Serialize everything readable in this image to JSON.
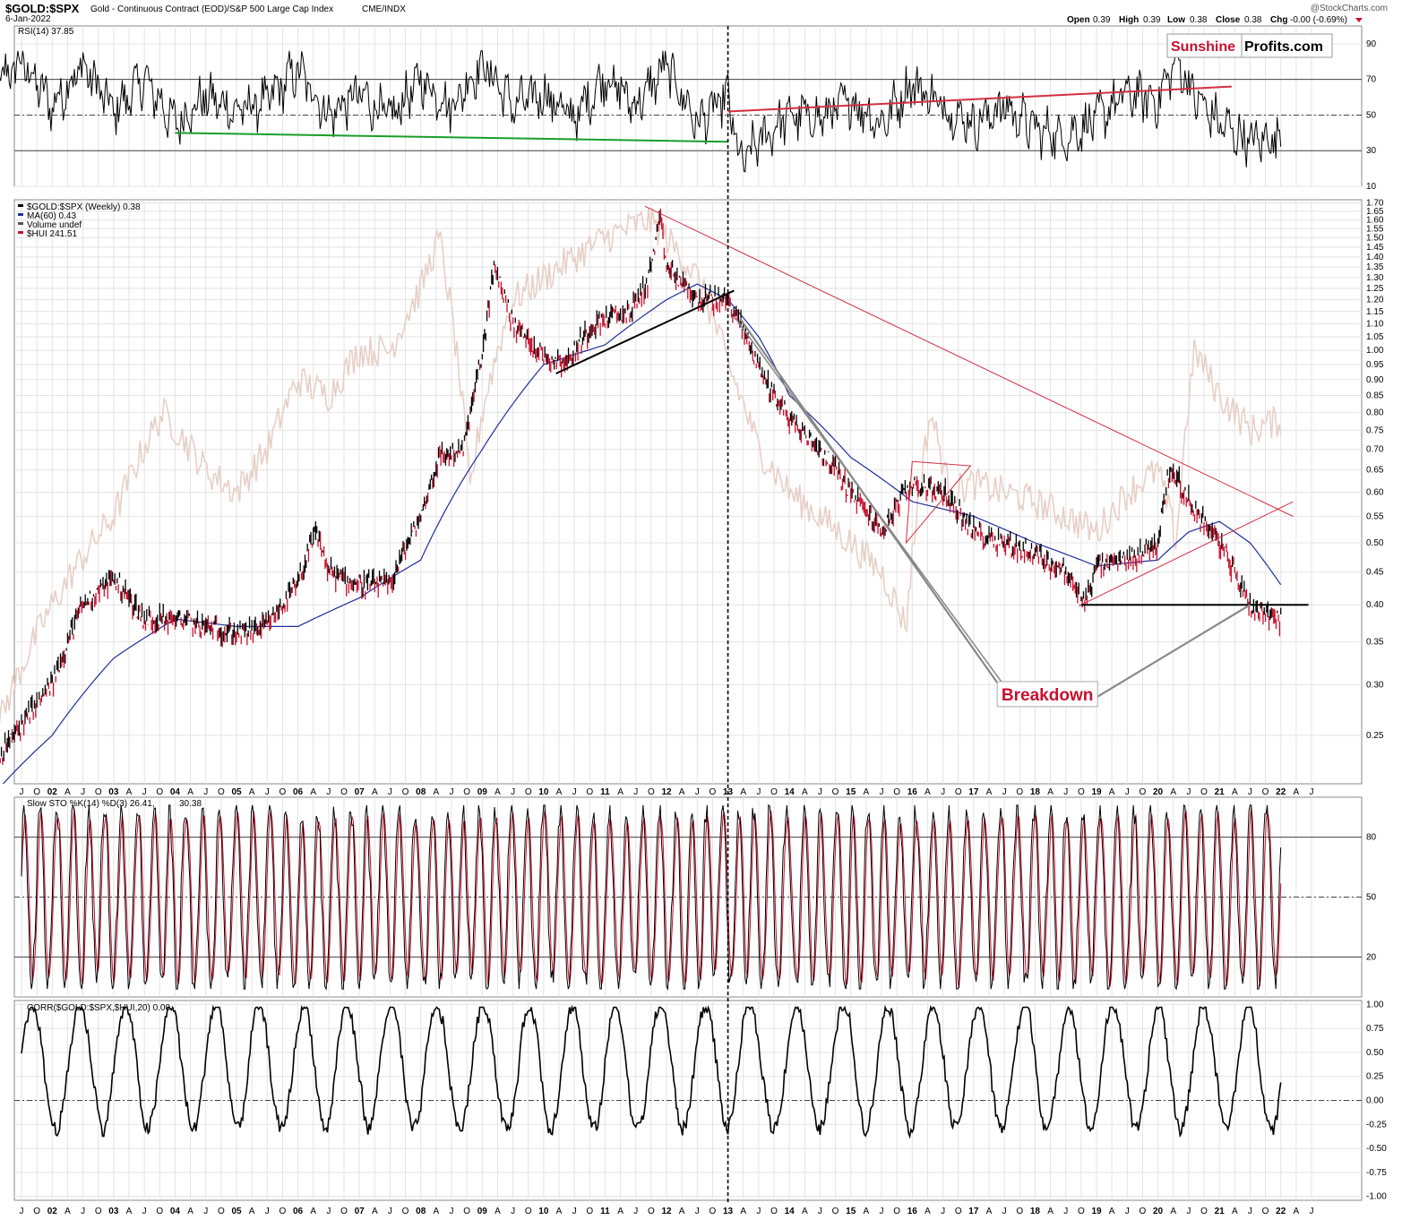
{
  "header": {
    "symbol": "$GOLD:$SPX",
    "description": "Gold - Continuous Contract (EOD)/S&P 500 Large Cap Index",
    "exchange": "CME/INDX",
    "date": "6-Jan-2022",
    "copyright": "@StockCharts.com",
    "quote": {
      "open_label": "Open",
      "open": "0.39",
      "high_label": "High",
      "high": "0.39",
      "low_label": "Low",
      "low": "0.38",
      "close_label": "Close",
      "close": "0.38",
      "chg_label": "Chg",
      "chg": "-0.00 (-0.69%)"
    }
  },
  "logo": {
    "part1": "Sunshine",
    "part2": "Profits.com"
  },
  "colors": {
    "price_up": "#000000",
    "price_down": "#c8102e",
    "ma": "#1f2f9a",
    "hui": "#e7cfc6",
    "support_green": "#1a9e2a",
    "resistance_red": "#d22e40",
    "stoch_d": "#c8102e",
    "logo_red": "#c8102e"
  },
  "chart_data": [
    {
      "type": "line",
      "panel": "rsi",
      "legend": "RSI(14) 37.85",
      "y_ticks": [
        10,
        30,
        50,
        70,
        90
      ],
      "ylim": [
        10,
        100
      ],
      "reference_lines": [
        30,
        50,
        70
      ],
      "series": [
        {
          "name": "RSI(14)",
          "x": [
            2001.0,
            2001.5,
            2002.0,
            2002.5,
            2003.0,
            2003.5,
            2004.0,
            2004.5,
            2005.0,
            2005.5,
            2006.0,
            2006.5,
            2007.0,
            2007.5,
            2008.0,
            2008.5,
            2009.0,
            2009.5,
            2010.0,
            2010.5,
            2011.0,
            2011.5,
            2012.0,
            2012.5,
            2013.0,
            2013.2,
            2013.5,
            2014.0,
            2014.5,
            2015.0,
            2015.5,
            2016.0,
            2016.5,
            2017.0,
            2017.5,
            2018.0,
            2018.5,
            2019.0,
            2019.5,
            2020.0,
            2020.3,
            2020.6,
            2021.0,
            2021.5,
            2022.0
          ],
          "values": [
            65,
            80,
            55,
            78,
            52,
            70,
            45,
            60,
            52,
            58,
            75,
            50,
            62,
            48,
            70,
            55,
            80,
            55,
            62,
            48,
            72,
            55,
            78,
            45,
            60,
            22,
            35,
            50,
            48,
            58,
            45,
            68,
            55,
            45,
            55,
            42,
            38,
            48,
            62,
            58,
            82,
            60,
            45,
            35,
            38
          ]
        }
      ],
      "trendlines": [
        {
          "color": "green",
          "from": [
            2004.0,
            40
          ],
          "to": [
            2013.0,
            35
          ]
        },
        {
          "color": "red",
          "from": [
            2013.0,
            52
          ],
          "to": [
            2021.2,
            66
          ]
        }
      ]
    },
    {
      "type": "line",
      "panel": "price",
      "scale": "log",
      "legend": [
        {
          "label": "$GOLD:$SPX (Weekly) 0.38"
        },
        {
          "label": "MA(60) 0.43"
        },
        {
          "label": "Volume undef"
        },
        {
          "label": "$HUI 241.51"
        }
      ],
      "y_ticks": [
        0.25,
        0.3,
        0.35,
        0.4,
        0.45,
        0.5,
        0.55,
        0.6,
        0.65,
        0.7,
        0.75,
        0.8,
        0.85,
        0.9,
        0.95,
        1.0,
        1.05,
        1.1,
        1.15,
        1.2,
        1.25,
        1.3,
        1.35,
        1.4,
        1.45,
        1.5,
        1.55,
        1.6,
        1.65,
        1.7
      ],
      "y_tick_labels": [
        "0.25",
        "0.30",
        "0.35",
        "0.40",
        "0.45",
        "0.50",
        "0.55",
        "0.60",
        "0.65",
        "0.70",
        "0.75",
        "0.80",
        "0.85",
        "0.90",
        "0.95",
        "1.00",
        "1.05",
        "1.10",
        "1.15",
        "1.20",
        "1.25",
        "1.30",
        "1.35",
        "1.40",
        "1.45",
        "1.50",
        "1.55",
        "1.60",
        "1.65",
        "1.70"
      ],
      "ylim": [
        0.21,
        1.72
      ],
      "series": [
        {
          "name": "$GOLD:$SPX (Weekly)",
          "x": [
            2001.0,
            2001.5,
            2002.0,
            2002.5,
            2003.0,
            2003.5,
            2004.0,
            2004.5,
            2005.0,
            2005.5,
            2006.0,
            2006.3,
            2006.5,
            2007.0,
            2007.5,
            2008.0,
            2008.3,
            2008.7,
            2009.0,
            2009.2,
            2009.5,
            2010.0,
            2010.4,
            2010.8,
            2011.0,
            2011.4,
            2011.7,
            2011.9,
            2012.0,
            2012.5,
            2013.0,
            2013.3,
            2013.6,
            2014.0,
            2014.5,
            2015.0,
            2015.5,
            2016.0,
            2016.5,
            2017.0,
            2017.5,
            2018.0,
            2018.5,
            2018.8,
            2019.0,
            2019.5,
            2020.0,
            2020.2,
            2020.5,
            2021.0,
            2021.5,
            2022.0
          ],
          "values": [
            0.22,
            0.26,
            0.3,
            0.4,
            0.44,
            0.38,
            0.38,
            0.37,
            0.36,
            0.37,
            0.43,
            0.52,
            0.45,
            0.43,
            0.43,
            0.55,
            0.68,
            0.7,
            0.98,
            1.35,
            1.1,
            0.98,
            0.96,
            1.1,
            1.12,
            1.15,
            1.28,
            1.6,
            1.35,
            1.2,
            1.2,
            1.05,
            0.9,
            0.78,
            0.7,
            0.6,
            0.52,
            0.62,
            0.6,
            0.52,
            0.5,
            0.48,
            0.45,
            0.4,
            0.46,
            0.47,
            0.5,
            0.66,
            0.58,
            0.5,
            0.4,
            0.38
          ]
        },
        {
          "name": "MA(60)",
          "x": [
            2001.2,
            2002.0,
            2003.0,
            2004.0,
            2005.0,
            2006.0,
            2007.0,
            2008.0,
            2009.0,
            2010.0,
            2011.0,
            2012.0,
            2012.5,
            2013.0,
            2013.5,
            2014.0,
            2015.0,
            2016.0,
            2017.0,
            2018.0,
            2019.0,
            2020.0,
            2020.5,
            2021.0,
            2021.5,
            2022.0
          ],
          "values": [
            0.21,
            0.25,
            0.33,
            0.38,
            0.37,
            0.37,
            0.41,
            0.47,
            0.7,
            0.95,
            1.02,
            1.2,
            1.27,
            1.2,
            1.05,
            0.85,
            0.68,
            0.58,
            0.55,
            0.5,
            0.46,
            0.47,
            0.52,
            0.54,
            0.5,
            0.43
          ]
        },
        {
          "name": "$HUI",
          "x": [
            2001.0,
            2002.0,
            2003.0,
            2003.8,
            2004.5,
            2005.0,
            2005.5,
            2006.0,
            2006.5,
            2007.0,
            2007.5,
            2008.0,
            2008.3,
            2008.8,
            2009.0,
            2009.5,
            2010.0,
            2010.5,
            2011.0,
            2011.7,
            2012.0,
            2012.5,
            2013.0,
            2013.5,
            2014.0,
            2015.0,
            2015.5,
            2015.9,
            2016.3,
            2016.6,
            2017.0,
            2017.5,
            2018.0,
            2018.5,
            2019.0,
            2019.5,
            2020.0,
            2020.3,
            2020.6,
            2021.0,
            2021.5,
            2022.0
          ],
          "values": [
            0.24,
            0.4,
            0.55,
            0.8,
            0.65,
            0.6,
            0.7,
            0.9,
            0.85,
            1.0,
            1.0,
            1.25,
            1.5,
            0.6,
            0.8,
            1.2,
            1.3,
            1.4,
            1.5,
            1.6,
            1.5,
            1.3,
            0.95,
            0.7,
            0.6,
            0.5,
            0.45,
            0.37,
            0.8,
            0.6,
            0.62,
            0.6,
            0.58,
            0.55,
            0.52,
            0.6,
            0.65,
            0.5,
            1.0,
            0.85,
            0.75,
            0.78
          ]
        }
      ],
      "trendlines": [
        {
          "color": "black",
          "from": [
            2010.2,
            0.92
          ],
          "to": [
            2013.1,
            1.24
          ]
        },
        {
          "color": "red",
          "from": [
            2011.65,
            1.68
          ],
          "to": [
            2022.2,
            0.55
          ]
        },
        {
          "color": "red",
          "from": [
            2018.75,
            0.4
          ],
          "to": [
            2022.2,
            0.58
          ]
        },
        {
          "color": "black",
          "from": [
            2018.75,
            0.4
          ],
          "to": [
            2022.45,
            0.4
          ]
        },
        {
          "color": "gray",
          "from": [
            2013.1,
            1.13
          ],
          "to": [
            2017.6,
            0.29
          ]
        }
      ],
      "pattern": {
        "type": "triangle",
        "points": [
          [
            2016.0,
            0.67
          ],
          [
            2016.95,
            0.66
          ],
          [
            2015.9,
            0.5
          ]
        ]
      },
      "annotation": {
        "text": "Breakdown",
        "x": 2018.2,
        "y": 0.29,
        "arrow_to": [
          2021.5,
          0.4
        ]
      }
    },
    {
      "type": "line",
      "panel": "stochastic",
      "legend": {
        "k": "Slow STO %K(14) %D(3) 26.41,",
        "d": "30.38"
      },
      "y_ticks": [
        20,
        50,
        80
      ],
      "ylim": [
        0,
        100
      ],
      "reference_lines": [
        20,
        50,
        80
      ]
    },
    {
      "type": "line",
      "panel": "correlation",
      "legend": "CORR($GOLD:$SPX,$HUI,20) 0.00",
      "y_ticks": [
        -1.0,
        -0.75,
        -0.5,
        -0.25,
        0.0,
        0.25,
        0.5,
        0.75,
        1.0
      ],
      "y_tick_labels": [
        "-1.00",
        "-0.75",
        "-0.50",
        "-0.25",
        "0.00",
        "0.25",
        "0.50",
        "0.75",
        "1.00"
      ],
      "ylim": [
        -1.0,
        1.0
      ],
      "reference_lines": [
        0.0
      ]
    }
  ],
  "x_axis": {
    "labels": [
      "J",
      "O",
      "02",
      "A",
      "J",
      "O",
      "03",
      "A",
      "J",
      "O",
      "04",
      "A",
      "J",
      "O",
      "05",
      "A",
      "J",
      "O",
      "06",
      "A",
      "J",
      "O",
      "07",
      "A",
      "J",
      "O",
      "08",
      "A",
      "J",
      "O",
      "09",
      "A",
      "J",
      "O",
      "10",
      "A",
      "J",
      "O",
      "11",
      "A",
      "J",
      "O",
      "12",
      "A",
      "J",
      "O",
      "13",
      "A",
      "J",
      "O",
      "14",
      "A",
      "J",
      "O",
      "15",
      "A",
      "J",
      "O",
      "16",
      "A",
      "J",
      "O",
      "17",
      "A",
      "J",
      "O",
      "18",
      "A",
      "J",
      "O",
      "19",
      "A",
      "J",
      "O",
      "20",
      "A",
      "J",
      "O",
      "21",
      "A",
      "J",
      "O",
      "22",
      "A",
      "J"
    ],
    "start_year": 2001.5,
    "step_years": 0.25
  },
  "event_line_year": 2013.0
}
